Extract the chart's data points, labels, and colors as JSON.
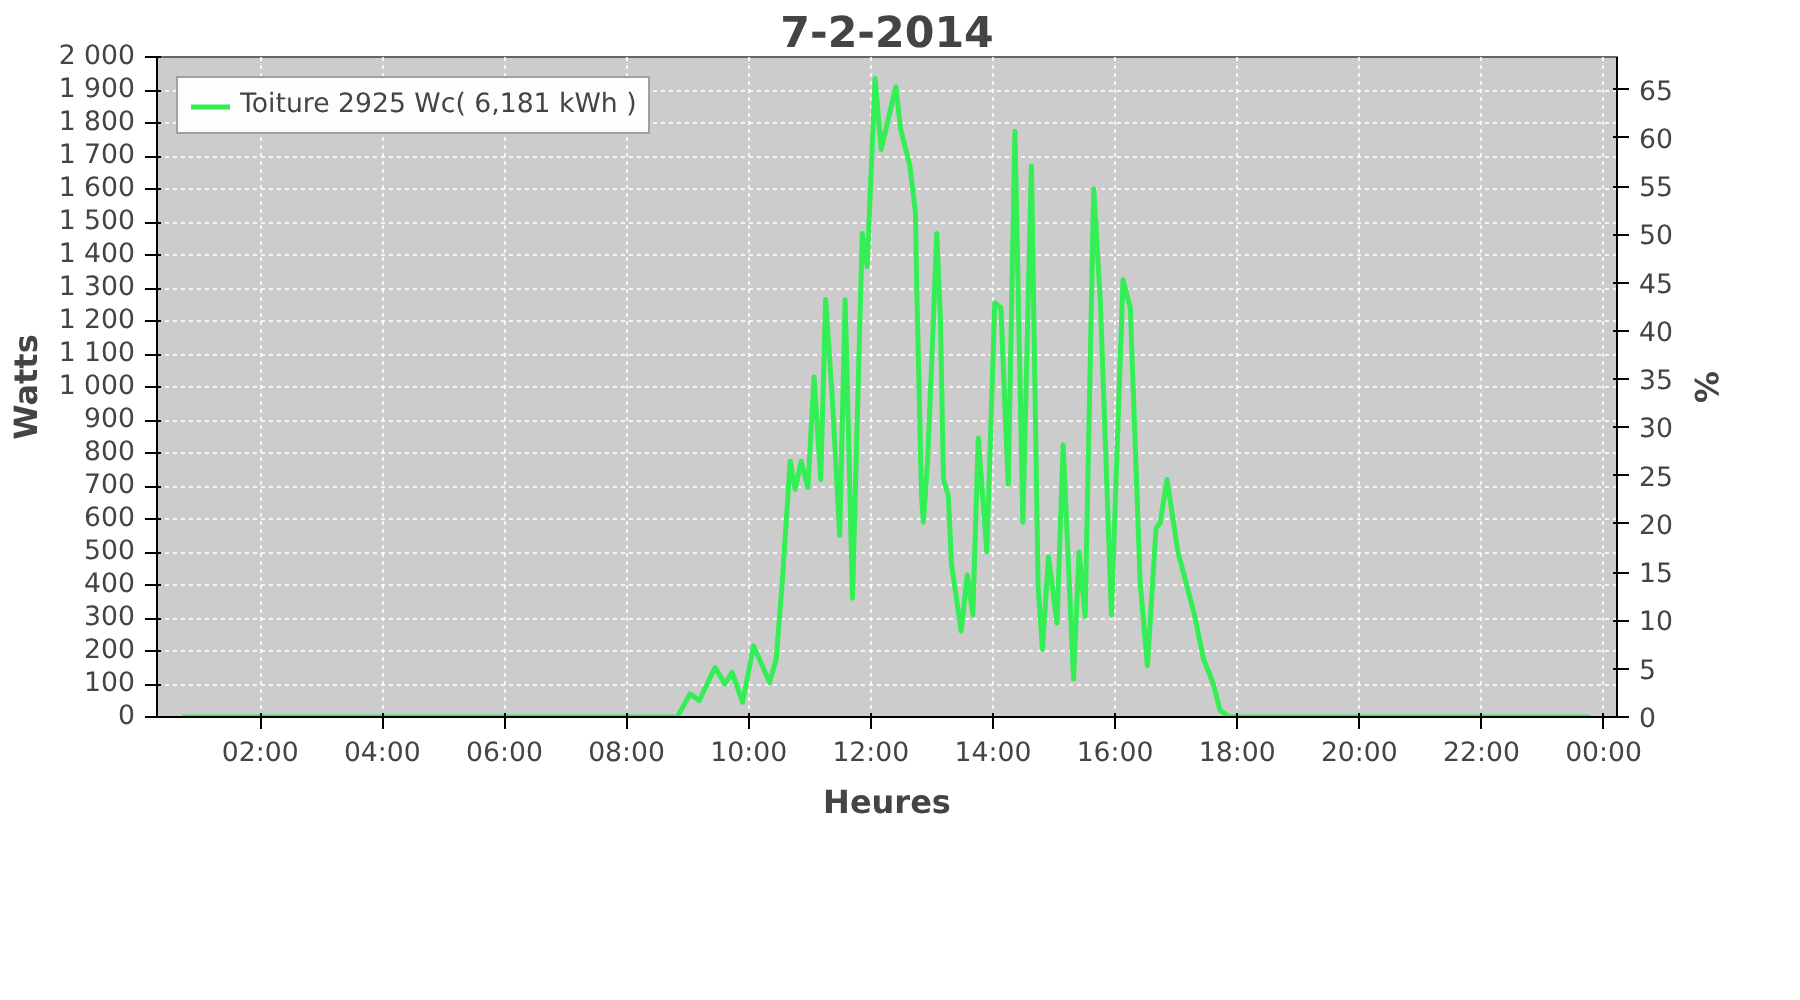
{
  "chart_data": {
    "type": "line",
    "title": "7-2-2014",
    "xlabel": "Heures",
    "ylabel": "Watts",
    "y2label": "%",
    "x": [
      0.72,
      8.83,
      9.04,
      9.19,
      9.45,
      9.61,
      9.73,
      9.9,
      10.08,
      10.34,
      10.45,
      10.55,
      10.68,
      10.76,
      10.86,
      10.97,
      11.07,
      11.18,
      11.26,
      11.37,
      11.49,
      11.58,
      11.7,
      11.86,
      11.94,
      12.07,
      12.17,
      12.41,
      12.49,
      12.64,
      12.73,
      12.75,
      12.83,
      12.86,
      12.93,
      13.01,
      13.08,
      13.14,
      13.19,
      13.27,
      13.32,
      13.48,
      13.58,
      13.67,
      13.76,
      13.9,
      14.03,
      14.13,
      14.25,
      14.36,
      14.49,
      14.63,
      14.74,
      14.81,
      14.91,
      15.05,
      15.15,
      15.32,
      15.41,
      15.51,
      15.65,
      15.76,
      15.94,
      16.13,
      16.25,
      16.41,
      16.53,
      16.67,
      16.74,
      16.85,
      17.03,
      17.3,
      17.45,
      17.61,
      17.72,
      17.87,
      23.78
    ],
    "series": [
      {
        "name": "Toiture 2925 Wc( 6,181 kWh )",
        "color": "#33ee55",
        "values": [
          0,
          0,
          70,
          50,
          150,
          100,
          135,
          45,
          215,
          105,
          175,
          410,
          775,
          690,
          775,
          695,
          1030,
          720,
          1265,
          965,
          550,
          1265,
          360,
          1465,
          1365,
          1935,
          1720,
          1910,
          1780,
          1670,
          1530,
          1325,
          670,
          590,
          775,
          1135,
          1465,
          1205,
          720,
          670,
          465,
          260,
          430,
          310,
          845,
          500,
          1255,
          1240,
          705,
          1775,
          590,
          1670,
          395,
          205,
          485,
          285,
          825,
          115,
          500,
          305,
          1600,
          1255,
          310,
          1325,
          1240,
          410,
          155,
          570,
          590,
          720,
          500,
          310,
          175,
          100,
          20,
          0,
          0
        ]
      }
    ],
    "xlim": [
      0.31,
      24.22
    ],
    "xticks": [
      {
        "value": 2,
        "label": "02:00"
      },
      {
        "value": 4,
        "label": "04:00"
      },
      {
        "value": 6,
        "label": "06:00"
      },
      {
        "value": 8,
        "label": "08:00"
      },
      {
        "value": 10,
        "label": "10:00"
      },
      {
        "value": 12,
        "label": "12:00"
      },
      {
        "value": 14,
        "label": "14:00"
      },
      {
        "value": 16,
        "label": "16:00"
      },
      {
        "value": 18,
        "label": "18:00"
      },
      {
        "value": 20,
        "label": "20:00"
      },
      {
        "value": 22,
        "label": "22:00"
      },
      {
        "value": 24,
        "label": "00:00"
      }
    ],
    "ylim": [
      0,
      2000
    ],
    "yticks": [
      0,
      100,
      200,
      300,
      400,
      500,
      600,
      700,
      800,
      900,
      {
        "value": 1000,
        "label": "1 000"
      },
      {
        "value": 1100,
        "label": "1 100"
      },
      {
        "value": 1200,
        "label": "1 200"
      },
      {
        "value": 1300,
        "label": "1 300"
      },
      {
        "value": 1400,
        "label": "1 400"
      },
      {
        "value": 1500,
        "label": "1 500"
      },
      {
        "value": 1600,
        "label": "1 600"
      },
      {
        "value": 1700,
        "label": "1 700"
      },
      {
        "value": 1800,
        "label": "1 800"
      },
      {
        "value": 1900,
        "label": "1 900"
      },
      {
        "value": 2000,
        "label": "2 000"
      }
    ],
    "y2lim": [
      0,
      68.38
    ],
    "y2ticks": [
      0,
      5,
      10,
      15,
      20,
      25,
      30,
      35,
      40,
      45,
      50,
      55,
      60,
      65
    ],
    "grid": true,
    "legend": "top left",
    "line_style": "solid",
    "marker": "none"
  }
}
